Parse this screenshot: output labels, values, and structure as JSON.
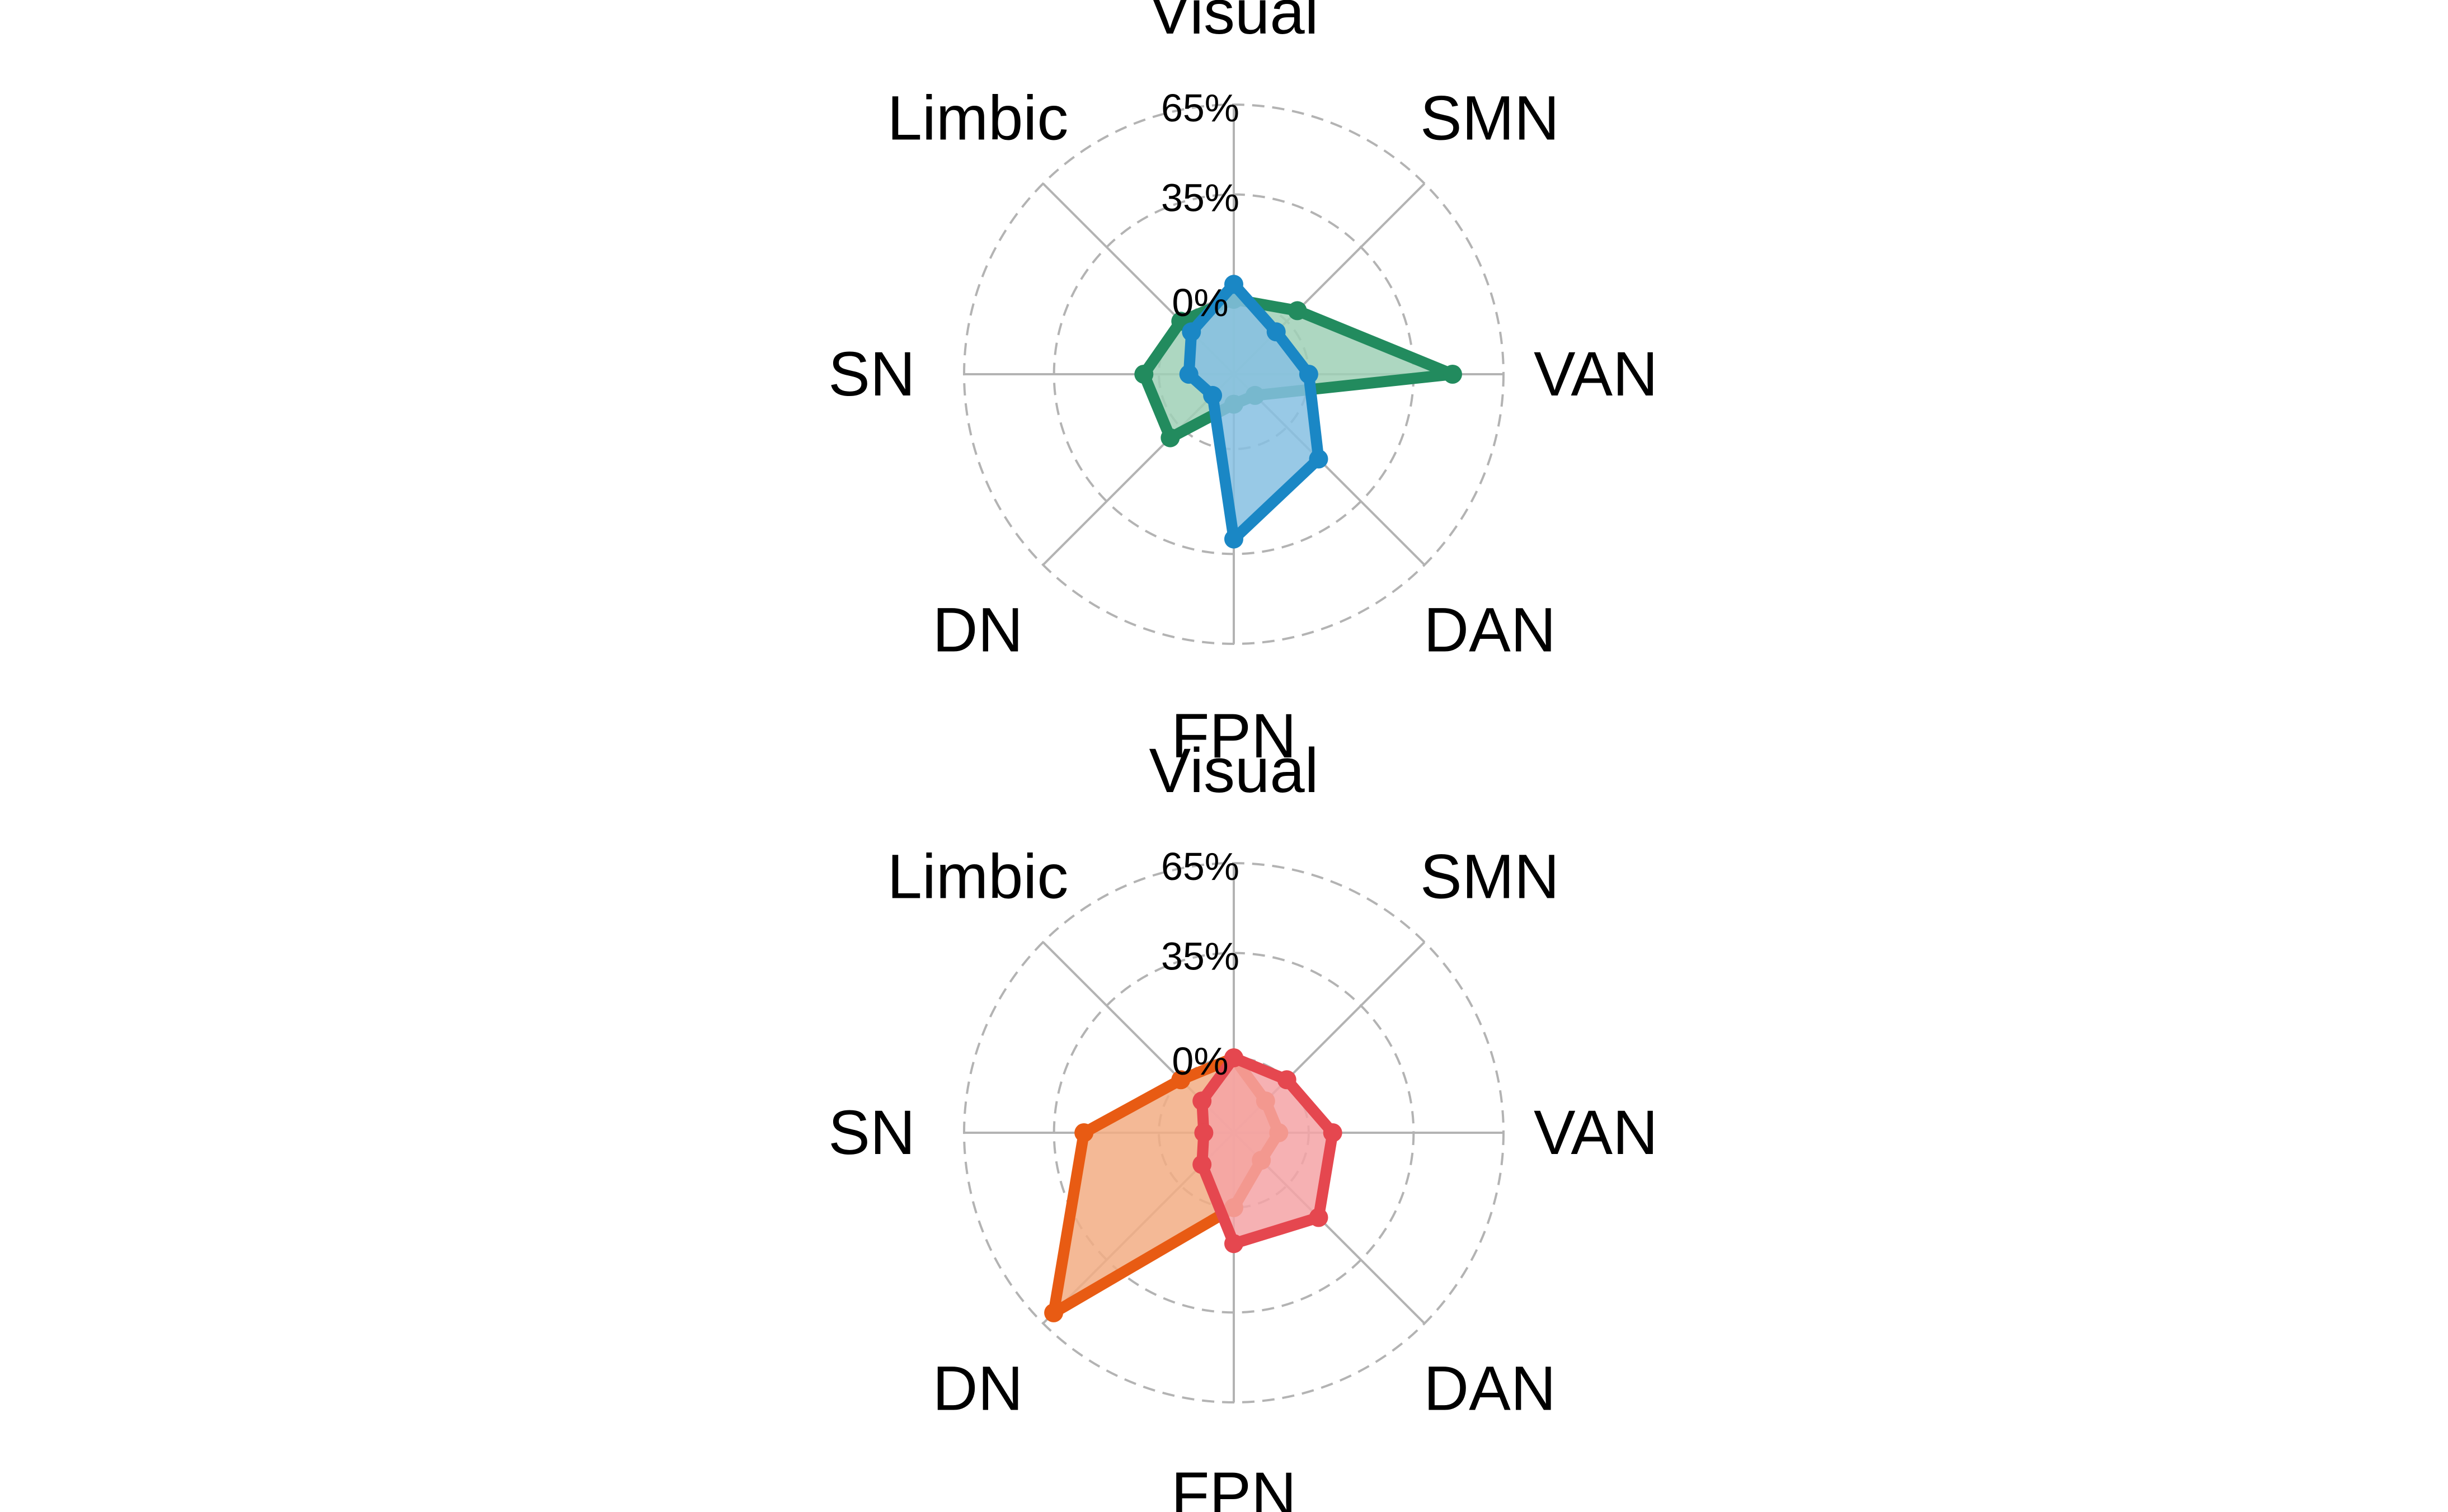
{
  "chart_data": [
    {
      "type": "radar",
      "axes": [
        "Visual",
        "SMN",
        "VAN",
        "DAN",
        "FPN",
        "DN",
        "SN",
        "Limbic"
      ],
      "tick_labels": [
        "0%",
        "35%",
        "65%"
      ],
      "ticks": [
        0,
        35,
        65
      ],
      "ylim": [
        -25,
        65
      ],
      "grid": true,
      "series": [
        {
          "color": "#228b5e",
          "fill": "#9fd0b6",
          "values": [
            0,
            5,
            48,
            -15,
            -15,
            5,
            5,
            0
          ]
        },
        {
          "color": "#1a87c5",
          "fill": "#86c0e2",
          "values": [
            5,
            -5,
            0,
            15,
            30,
            -15,
            -10,
            -5
          ]
        }
      ]
    },
    {
      "type": "radar",
      "axes": [
        "Visual",
        "SMN",
        "VAN",
        "DAN",
        "FPN",
        "DN",
        "SN",
        "Limbic"
      ],
      "tick_labels": [
        "0%",
        "35%",
        "65%"
      ],
      "ticks": [
        0,
        35,
        65
      ],
      "ylim": [
        -25,
        65
      ],
      "grid": true,
      "series": [
        {
          "color": "#e85b13",
          "fill": "#f2ad84",
          "values": [
            0,
            -10,
            -10,
            -12,
            0,
            60,
            25,
            0
          ]
        },
        {
          "color": "#e5474f",
          "fill": "#f4a3a6",
          "values": [
            0,
            0,
            8,
            15,
            12,
            -10,
            -15,
            -10
          ]
        }
      ]
    }
  ]
}
